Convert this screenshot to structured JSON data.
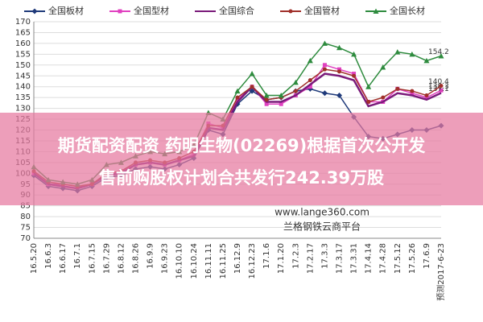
{
  "chart_data": {
    "type": "line",
    "categories": [
      "16.5.20",
      "16.6.3",
      "16.6.17",
      "16.7.1",
      "16.7.15",
      "16.7.29",
      "16.8.12",
      "16.8.26",
      "16.9.9",
      "16.9.23",
      "16.10.10",
      "16.10.24",
      "16.11.11",
      "16.11.25",
      "16.12.9",
      "16.12.23",
      "17.1.6",
      "17.1.20",
      "17.2.3",
      "17.2.17",
      "17.3.3",
      "17.3.17",
      "17.3.31",
      "17.4.14",
      "17.4.28",
      "17.5.12",
      "17.5.26",
      "17.6.9",
      "预测2017-6-23"
    ],
    "series": [
      {
        "name": "全国板材",
        "color": "#1f3a7a",
        "marker": "diamond",
        "values": [
          99,
          94,
          93,
          92,
          94,
          98,
          99,
          102,
          103,
          102,
          104,
          107,
          120,
          118,
          132,
          138,
          134,
          135,
          138,
          139,
          137,
          136,
          126,
          117,
          116,
          118,
          120,
          120,
          122
        ]
      },
      {
        "name": "全国型材",
        "color": "#e040c0",
        "marker": "square",
        "values": [
          100,
          95,
          95,
          94,
          95,
          99,
          101,
          104,
          105,
          104,
          106,
          109,
          123,
          121,
          134,
          140,
          132,
          132,
          136,
          140,
          150,
          148,
          146,
          133,
          133,
          139,
          137,
          135,
          138.3
        ],
        "value_labels": [
          null,
          null,
          null,
          null,
          null,
          null,
          null,
          null,
          null,
          null,
          null,
          null,
          null,
          null,
          null,
          null,
          null,
          null,
          null,
          null,
          null,
          null,
          null,
          null,
          null,
          null,
          null,
          null,
          "138.3"
        ]
      },
      {
        "name": "全国综合",
        "color": "#7a1a7a",
        "marker": "none",
        "values": [
          100,
          95,
          94,
          93,
          95,
          99,
          100,
          104,
          105,
          104,
          106,
          108,
          121,
          120,
          133,
          140,
          133,
          133,
          136,
          141,
          146,
          145,
          143,
          131,
          133,
          137,
          136,
          134,
          137.1
        ],
        "value_labels": [
          null,
          null,
          null,
          null,
          null,
          null,
          null,
          null,
          null,
          null,
          null,
          null,
          null,
          null,
          null,
          null,
          null,
          null,
          null,
          null,
          null,
          null,
          null,
          null,
          null,
          null,
          null,
          null,
          "137.1"
        ]
      },
      {
        "name": "全国管材",
        "color": "#a0302a",
        "marker": "circle",
        "values": [
          101,
          96,
          95,
          94,
          95,
          100,
          101,
          105,
          106,
          105,
          107,
          110,
          122,
          122,
          135,
          140,
          134,
          135,
          138,
          143,
          148,
          147,
          145,
          133,
          135,
          139,
          138,
          136,
          140.4
        ],
        "value_labels": [
          null,
          null,
          null,
          null,
          null,
          null,
          null,
          null,
          null,
          null,
          null,
          null,
          null,
          null,
          null,
          null,
          null,
          null,
          null,
          null,
          null,
          null,
          null,
          null,
          null,
          null,
          null,
          null,
          "140.4"
        ]
      },
      {
        "name": "全国长材",
        "color": "#2e8b3e",
        "marker": "triangle",
        "values": [
          103,
          97,
          96,
          95,
          97,
          104,
          105,
          108,
          110,
          109,
          110,
          113,
          128,
          125,
          138,
          146,
          136,
          136,
          142,
          152,
          160,
          158,
          155,
          140,
          149,
          156,
          155,
          152,
          154.2
        ],
        "value_labels": [
          null,
          null,
          null,
          null,
          null,
          null,
          null,
          null,
          null,
          null,
          null,
          null,
          null,
          null,
          null,
          null,
          null,
          null,
          null,
          null,
          null,
          null,
          null,
          null,
          null,
          null,
          null,
          null,
          "154.2"
        ]
      }
    ],
    "ylim": [
      70,
      170
    ],
    "yticks": [
      70,
      75,
      80,
      85,
      90,
      95,
      100,
      105,
      110,
      115,
      120,
      125,
      130,
      135,
      140,
      145,
      150,
      155,
      160,
      165,
      170
    ],
    "grid": true
  },
  "overlay": {
    "line1": "期货配资配资 药明生物(02269)根据首次公开发",
    "line2": "售前购股权计划合共发行242.39万股",
    "watermark": "www.lange360.com",
    "brand": "兰格钢铁云商平台"
  }
}
